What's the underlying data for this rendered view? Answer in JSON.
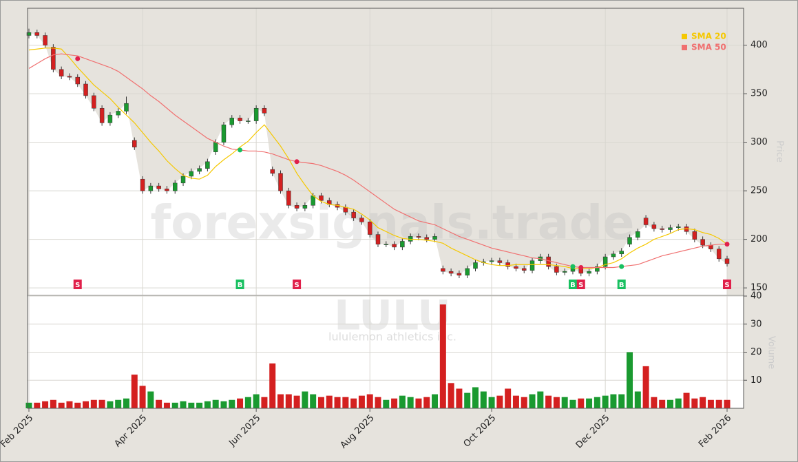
{
  "chart_data": {
    "type": "candlestick",
    "watermark": "forexsignals.trade",
    "symbol": "LULU",
    "company": "lululemon athletics inc.",
    "y_label": "Price",
    "up_color": "#1a9a30",
    "down_color": "#d42020",
    "grid": true,
    "legend": "upper right",
    "ylim": [
      143,
      438
    ],
    "yticks": [
      150,
      200,
      250,
      300,
      350,
      400
    ],
    "categories": [
      "Feb 2025",
      null,
      null,
      null,
      null,
      null,
      null,
      null,
      null,
      null,
      null,
      null,
      null,
      null,
      "Apr 2025",
      null,
      null,
      null,
      null,
      null,
      null,
      null,
      null,
      null,
      null,
      null,
      null,
      null,
      "Jun 2025",
      null,
      null,
      null,
      null,
      null,
      null,
      null,
      null,
      null,
      null,
      null,
      null,
      null,
      "Aug 2025",
      null,
      null,
      null,
      null,
      null,
      null,
      null,
      null,
      null,
      null,
      null,
      null,
      null,
      null,
      "Oct 2025",
      null,
      null,
      null,
      null,
      null,
      null,
      null,
      null,
      null,
      null,
      null,
      null,
      null,
      "Dec 2025",
      null,
      null,
      null,
      null,
      null,
      null,
      null,
      null,
      null,
      null,
      null,
      null,
      null,
      null,
      "Feb 2026"
    ],
    "ohlc": [
      [
        410,
        417,
        407,
        413
      ],
      [
        413,
        416,
        407,
        410
      ],
      [
        410,
        413,
        397,
        400
      ],
      [
        398,
        401,
        372,
        375
      ],
      [
        375,
        378,
        365,
        368
      ],
      [
        368,
        371,
        364,
        367
      ],
      [
        367,
        370,
        357,
        360
      ],
      [
        360,
        363,
        345,
        348
      ],
      [
        348,
        351,
        332,
        335
      ],
      [
        335,
        338,
        317,
        320
      ],
      [
        320,
        331,
        317,
        328
      ],
      [
        328,
        335,
        325,
        332
      ],
      [
        332,
        347,
        329,
        340
      ],
      [
        302,
        305,
        292,
        295
      ],
      [
        262,
        265,
        247,
        250
      ],
      [
        250,
        258,
        247,
        255
      ],
      [
        255,
        258,
        249,
        252
      ],
      [
        252,
        255,
        247,
        250
      ],
      [
        250,
        261,
        247,
        258
      ],
      [
        258,
        268,
        255,
        265
      ],
      [
        265,
        273,
        262,
        270
      ],
      [
        270,
        276,
        267,
        273
      ],
      [
        273,
        283,
        270,
        280
      ],
      [
        290,
        303,
        287,
        300
      ],
      [
        300,
        321,
        297,
        318
      ],
      [
        318,
        328,
        315,
        325
      ],
      [
        325,
        328,
        319,
        322
      ],
      [
        322,
        325,
        319,
        322
      ],
      [
        322,
        338,
        319,
        335
      ],
      [
        335,
        338,
        327,
        330
      ],
      [
        272,
        275,
        265,
        268
      ],
      [
        268,
        271,
        247,
        250
      ],
      [
        250,
        253,
        232,
        235
      ],
      [
        235,
        238,
        229,
        232
      ],
      [
        232,
        238,
        229,
        235
      ],
      [
        235,
        248,
        232,
        245
      ],
      [
        245,
        248,
        237,
        240
      ],
      [
        240,
        243,
        233,
        236
      ],
      [
        236,
        239,
        230,
        233
      ],
      [
        233,
        236,
        225,
        228
      ],
      [
        228,
        231,
        219,
        222
      ],
      [
        222,
        225,
        215,
        218
      ],
      [
        218,
        221,
        202,
        205
      ],
      [
        205,
        208,
        192,
        195
      ],
      [
        195,
        198,
        192,
        195
      ],
      [
        195,
        198,
        189,
        192
      ],
      [
        192,
        201,
        189,
        198
      ],
      [
        198,
        206,
        195,
        203
      ],
      [
        203,
        206,
        199,
        202
      ],
      [
        202,
        205,
        197,
        200
      ],
      [
        200,
        206,
        197,
        203
      ],
      [
        170,
        173,
        164,
        167
      ],
      [
        167,
        170,
        162,
        165
      ],
      [
        165,
        168,
        160,
        163
      ],
      [
        163,
        173,
        160,
        170
      ],
      [
        170,
        179,
        167,
        176
      ],
      [
        176,
        180,
        173,
        177
      ],
      [
        177,
        181,
        174,
        178
      ],
      [
        178,
        181,
        173,
        176
      ],
      [
        176,
        179,
        169,
        172
      ],
      [
        172,
        175,
        167,
        170
      ],
      [
        170,
        173,
        165,
        168
      ],
      [
        168,
        181,
        165,
        178
      ],
      [
        178,
        185,
        175,
        182
      ],
      [
        182,
        185,
        169,
        172
      ],
      [
        172,
        175,
        163,
        166
      ],
      [
        166,
        170,
        163,
        167
      ],
      [
        167,
        173,
        164,
        170
      ],
      [
        170,
        173,
        162,
        165
      ],
      [
        165,
        170,
        162,
        167
      ],
      [
        167,
        175,
        164,
        172
      ],
      [
        172,
        185,
        169,
        182
      ],
      [
        182,
        188,
        179,
        185
      ],
      [
        185,
        191,
        182,
        188
      ],
      [
        195,
        205,
        192,
        202
      ],
      [
        202,
        211,
        199,
        208
      ],
      [
        222,
        225,
        212,
        215
      ],
      [
        215,
        218,
        208,
        211
      ],
      [
        211,
        214,
        207,
        210
      ],
      [
        210,
        215,
        207,
        212
      ],
      [
        212,
        216,
        209,
        213
      ],
      [
        213,
        216,
        205,
        208
      ],
      [
        208,
        211,
        197,
        200
      ],
      [
        200,
        203,
        191,
        194
      ],
      [
        194,
        197,
        187,
        190
      ],
      [
        190,
        193,
        177,
        180
      ],
      [
        180,
        183,
        172,
        175
      ]
    ],
    "series": [
      {
        "name": "SMA 20",
        "color": "#f5c800",
        "values": [
          395,
          396,
          397,
          397,
          396,
          387,
          377,
          368,
          359,
          352,
          345,
          336,
          328,
          320,
          310,
          300,
          291,
          281,
          273,
          266,
          263,
          262,
          266,
          275,
          282,
          288,
          295,
          301,
          310,
          318,
          307,
          296,
          283,
          268,
          256,
          245,
          239,
          236,
          235,
          233,
          231,
          226,
          220,
          212,
          208,
          204,
          201,
          200,
          200,
          199,
          198,
          196,
          191,
          187,
          183,
          179,
          176,
          174,
          173,
          173,
          174,
          174,
          174,
          174,
          174,
          173,
          172,
          170,
          170,
          170,
          171,
          174,
          176,
          180,
          186,
          191,
          195,
          200,
          203,
          206,
          210,
          211,
          210,
          207,
          205,
          201,
          195
        ]
      },
      {
        "name": "SMA 50",
        "color": "#f07070",
        "values": [
          376,
          381,
          386,
          390,
          391,
          390,
          389,
          386,
          383,
          380,
          377,
          373,
          367,
          361,
          355,
          348,
          342,
          335,
          328,
          322,
          316,
          310,
          304,
          300,
          296,
          293,
          292,
          291,
          291,
          290,
          288,
          285,
          282,
          280,
          279,
          278,
          276,
          273,
          270,
          266,
          261,
          255,
          249,
          243,
          237,
          231,
          227,
          223,
          219,
          217,
          215,
          211,
          207,
          203,
          200,
          197,
          194,
          191,
          189,
          187,
          185,
          183,
          181,
          180,
          178,
          176,
          174,
          172,
          171,
          171,
          171,
          171,
          171,
          172,
          173,
          174,
          177,
          180,
          183,
          185,
          187,
          189,
          191,
          193,
          194,
          195,
          195
        ]
      }
    ],
    "signals": [
      {
        "x": 6,
        "label": "S",
        "price": 386
      },
      {
        "x": 26,
        "label": "B",
        "price": 292
      },
      {
        "x": 33,
        "label": "S",
        "price": 280
      },
      {
        "x": 67,
        "label": "B",
        "price": 172
      },
      {
        "x": 68,
        "label": "S",
        "price": 171
      },
      {
        "x": 73,
        "label": "B",
        "price": 172
      },
      {
        "x": 86,
        "label": "S",
        "price": 195
      }
    ],
    "sell_color": "#e0204a",
    "buy_color": "#18c060",
    "volume": {
      "label": "Volume",
      "ylim": [
        0,
        40
      ],
      "yticks": [
        10,
        20,
        30,
        40
      ],
      "values": [
        2,
        2,
        2.5,
        3,
        2,
        2.5,
        2,
        2.5,
        3,
        3,
        2.5,
        3,
        3.5,
        12,
        8,
        6,
        3,
        2,
        2,
        2.5,
        2,
        2,
        2.5,
        3,
        2.5,
        3,
        3.5,
        4,
        5,
        4,
        16,
        5,
        5,
        4.5,
        6,
        5,
        4,
        4.5,
        4,
        4,
        3.5,
        4.5,
        5,
        4,
        3,
        3.5,
        4.5,
        4,
        3.5,
        4,
        5,
        37,
        9,
        7,
        5.5,
        7.5,
        6,
        4,
        4.5,
        7,
        4.5,
        4,
        5,
        6,
        4.5,
        4,
        4,
        3,
        3.5,
        3.5,
        4,
        4.5,
        5,
        5,
        20,
        6,
        15,
        4,
        3,
        3,
        3.5,
        5.5,
        3.5,
        4,
        3,
        3,
        3
      ]
    }
  }
}
